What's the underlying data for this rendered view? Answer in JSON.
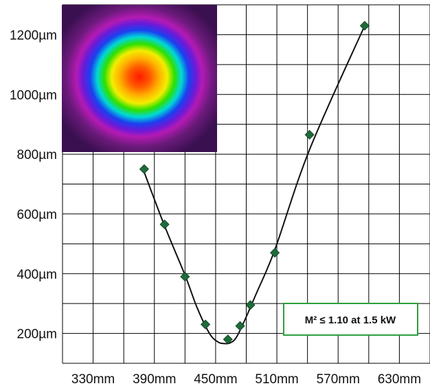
{
  "chart_data": {
    "type": "scatter",
    "title": "",
    "xlabel": "",
    "ylabel": "",
    "x_ticks": [
      "330mm",
      "390mm",
      "450mm",
      "510mm",
      "570mm",
      "630mm"
    ],
    "y_ticks": [
      "200µm",
      "400µm",
      "600µm",
      "800µm",
      "1000µm",
      "1200µm"
    ],
    "xlim": [
      300,
      660
    ],
    "ylim": [
      100,
      1300
    ],
    "grid": true,
    "legend": "none",
    "series": [
      {
        "marker": "diamond",
        "color": "#1f6b3a",
        "x": [
          380,
          400,
          420,
          440,
          462,
          474,
          484,
          508,
          542,
          596
        ],
        "y": [
          750,
          565,
          390,
          230,
          180,
          225,
          295,
          470,
          865,
          1230
        ]
      }
    ],
    "fit_curve": {
      "color": "#111111",
      "x": [
        380,
        400,
        420,
        432,
        444,
        452,
        458,
        464,
        470,
        478,
        490,
        508,
        542,
        596
      ],
      "y": [
        740,
        560,
        395,
        285,
        200,
        172,
        166,
        168,
        185,
        240,
        335,
        480,
        815,
        1230
      ]
    },
    "annotation": {
      "text": "M² ≤ 1.10 at 1.5 kW",
      "border_color": "#2e9e3e"
    },
    "inset": "beam-profile-image"
  }
}
